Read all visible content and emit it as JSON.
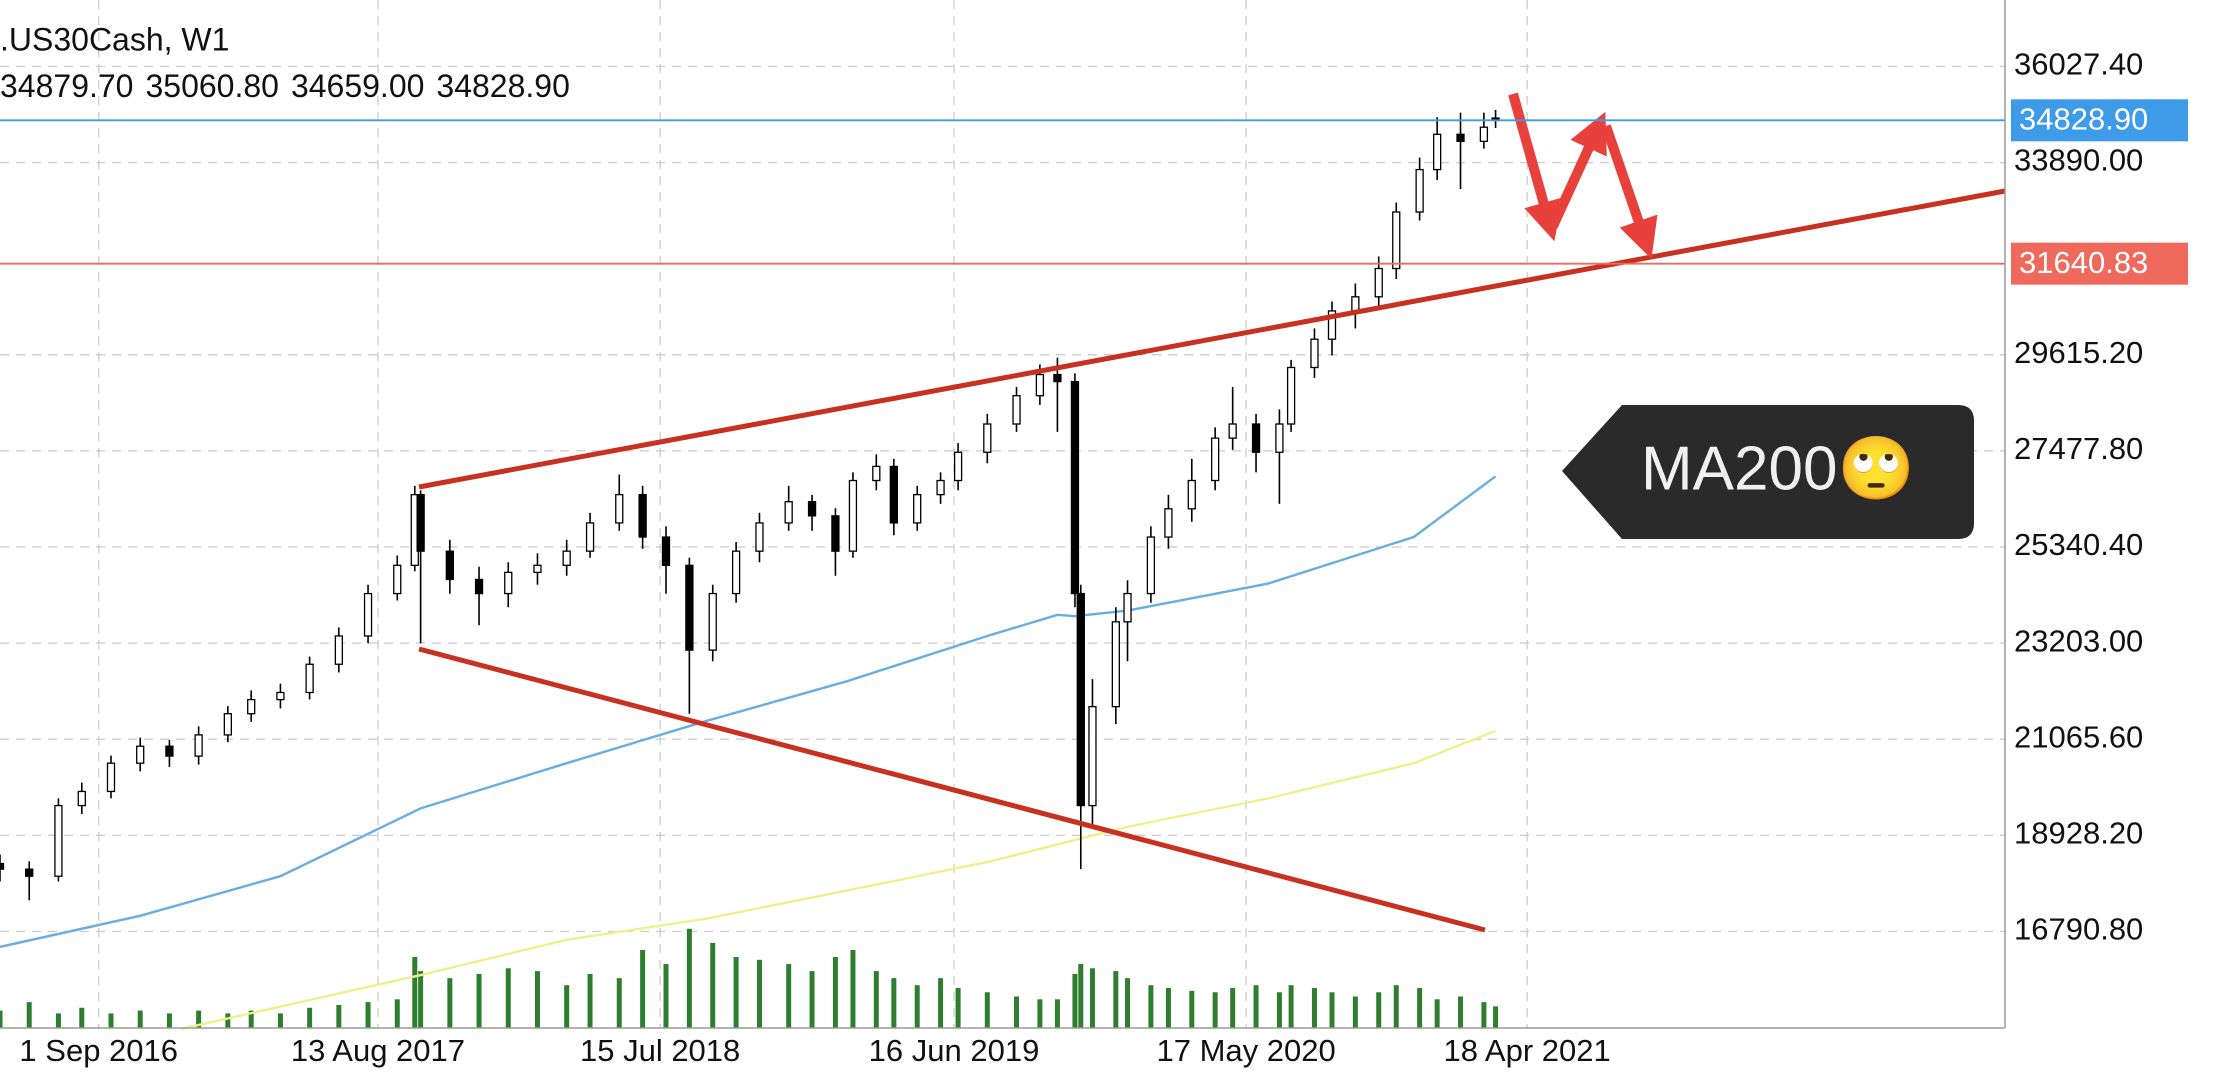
{
  "chart_data": {
    "type": "candlestick",
    "title": ".US30Cash, W1",
    "header_values": [
      "34879.70",
      "35060.80",
      "34659.00",
      "34828.90"
    ],
    "x": [
      0,
      5,
      10,
      14,
      19,
      24,
      29,
      34,
      39,
      43,
      48,
      53,
      58,
      63,
      68,
      71,
      72,
      77,
      82,
      87,
      92,
      97,
      101,
      106,
      110,
      114,
      118,
      122,
      126,
      130,
      135,
      139,
      143,
      146,
      150,
      153,
      157,
      161,
      164,
      169,
      174,
      178,
      181,
      184,
      185,
      187,
      191,
      193,
      197,
      200,
      204,
      208,
      211,
      215,
      219,
      221,
      225,
      228,
      232,
      236,
      239,
      243,
      246,
      250,
      254,
      256
    ],
    "open": [
      18300,
      18175,
      18018,
      19589,
      19903,
      20532,
      20909,
      20689,
      21161,
      21632,
      21946,
      22104,
      22732,
      23361,
      24304,
      24932,
      26504,
      25247,
      24618,
      24304,
      24775,
      24932,
      25247,
      25875,
      26504,
      25561,
      24932,
      23046,
      24304,
      25247,
      25875,
      26347,
      26032,
      25247,
      26818,
      27132,
      25875,
      26504,
      26818,
      27447,
      28075,
      28704,
      29175,
      29018,
      24304,
      19589,
      21789,
      23675,
      24304,
      25561,
      26189,
      26818,
      27761,
      28075,
      27447,
      28075,
      29332,
      29961,
      30590,
      30904,
      31533,
      32790,
      33733,
      34518,
      34361,
      34879.7
    ],
    "high": [
      18500,
      18350,
      19750,
      20100,
      20700,
      21100,
      21050,
      21350,
      21800,
      22150,
      22300,
      22900,
      23550,
      24500,
      25150,
      26700,
      26600,
      25500,
      24900,
      25000,
      25200,
      25500,
      26100,
      26950,
      26700,
      25800,
      25100,
      24500,
      25450,
      26100,
      26700,
      26500,
      26200,
      27000,
      27400,
      27300,
      26700,
      27000,
      27650,
      28300,
      28900,
      29400,
      29550,
      29200,
      24500,
      22400,
      24000,
      24600,
      25800,
      26500,
      27300,
      28000,
      28900,
      28300,
      28400,
      29500,
      30200,
      30800,
      31200,
      31800,
      33000,
      34000,
      34900,
      35000,
      35000,
      35060.8
    ],
    "low": [
      17900,
      17483,
      17900,
      19400,
      19750,
      20350,
      20450,
      20500,
      21000,
      21450,
      21750,
      21950,
      22550,
      23200,
      24150,
      24800,
      23200,
      24300,
      23600,
      24000,
      24500,
      24700,
      25100,
      25700,
      25300,
      24300,
      21632,
      22800,
      24100,
      25000,
      25700,
      25700,
      24700,
      25100,
      26600,
      25600,
      25700,
      26300,
      26600,
      27200,
      27900,
      28500,
      27900,
      24000,
      18175,
      19100,
      21400,
      22800,
      24100,
      25300,
      25900,
      26600,
      27500,
      27000,
      26300,
      27900,
      29100,
      29600,
      30200,
      30700,
      31300,
      32600,
      33500,
      33300,
      34200,
      34659
    ],
    "close": [
      18175,
      18018,
      19589,
      19903,
      20532,
      20909,
      20689,
      21161,
      21632,
      21946,
      22104,
      22732,
      23361,
      24304,
      24932,
      26504,
      25247,
      24618,
      24304,
      24775,
      24932,
      25247,
      25875,
      26504,
      25561,
      24932,
      23046,
      24304,
      25247,
      25875,
      26347,
      26032,
      25247,
      26818,
      27132,
      25875,
      26504,
      26818,
      27447,
      28075,
      28704,
      29175,
      29018,
      24304,
      19589,
      21789,
      23675,
      24304,
      25561,
      26189,
      26818,
      27761,
      28075,
      27447,
      28075,
      29332,
      29961,
      30590,
      30904,
      31533,
      32790,
      33733,
      34518,
      34361,
      34676,
      34828.9
    ],
    "color_up": "#ffffff",
    "color_down": "#000000",
    "volume": {
      "axis": "y2",
      "color": "#2f7d2f",
      "values": [
        12,
        18,
        10,
        14,
        10,
        12,
        10,
        12,
        10,
        12,
        10,
        14,
        16,
        18,
        20,
        50,
        40,
        35,
        38,
        42,
        40,
        30,
        38,
        35,
        55,
        45,
        70,
        60,
        50,
        48,
        45,
        40,
        50,
        55,
        40,
        35,
        30,
        35,
        28,
        25,
        22,
        20,
        20,
        38,
        45,
        42,
        40,
        35,
        30,
        28,
        26,
        25,
        28,
        30,
        25,
        30,
        28,
        25,
        22,
        25,
        30,
        28,
        20,
        22,
        18,
        15
      ]
    },
    "y2lim": [
      0,
      100
    ],
    "lines": [
      {
        "color": "#6aaee0",
        "x": [
          0,
          24,
          48,
          72,
          97,
          121,
          145,
          169,
          181,
          184,
          193,
          217,
          242,
          256
        ],
        "values": [
          16446,
          17137,
          18018,
          19526,
          20532,
          21475,
          22355,
          23361,
          23832,
          23801,
          23926,
          24524,
          25561,
          26912
        ]
      },
      {
        "color": "#eef08c",
        "x": [
          31,
          72,
          97,
          121,
          145,
          169,
          193,
          217,
          242,
          256
        ],
        "values": [
          14623,
          15818,
          16603,
          17075,
          17703,
          18332,
          19118,
          19746,
          20532,
          21255
        ]
      }
    ],
    "hlines": [
      {
        "value": 34828.9,
        "label": "34828.90",
        "color": "#3d9be9"
      },
      {
        "value": 31640.83,
        "label": "31640.83",
        "color": "#ef6a5c"
      }
    ],
    "ylim": [
      14653.4,
      37504.7
    ],
    "yticks": [
      {
        "value": 36027.4,
        "label": "36027.40"
      },
      {
        "value": 33890,
        "label": "33890.00"
      },
      {
        "value": 29615.2,
        "label": "29615.20"
      },
      {
        "value": 27477.8,
        "label": "27477.80"
      },
      {
        "value": 25340.4,
        "label": "25340.40"
      },
      {
        "value": 23203,
        "label": "23203.00"
      },
      {
        "value": 21065.6,
        "label": "21065.60"
      },
      {
        "value": 18928.2,
        "label": "18928.20"
      },
      {
        "value": 16790.8,
        "label": "16790.80"
      }
    ],
    "xlim": [
      0,
      343.2
    ],
    "xticks": [
      {
        "value": 16.9,
        "label": "1 Sep 2016"
      },
      {
        "value": 64.7,
        "label": "13 Aug 2017"
      },
      {
        "value": 113,
        "label": "15 Jul 2018"
      },
      {
        "value": 163.3,
        "label": "16 Jun 2019"
      },
      {
        "value": 213.3,
        "label": "17 May 2020"
      },
      {
        "value": 261.4,
        "label": "18 Apr 2021"
      }
    ],
    "grid": true,
    "annotation": "MA200🙄"
  }
}
